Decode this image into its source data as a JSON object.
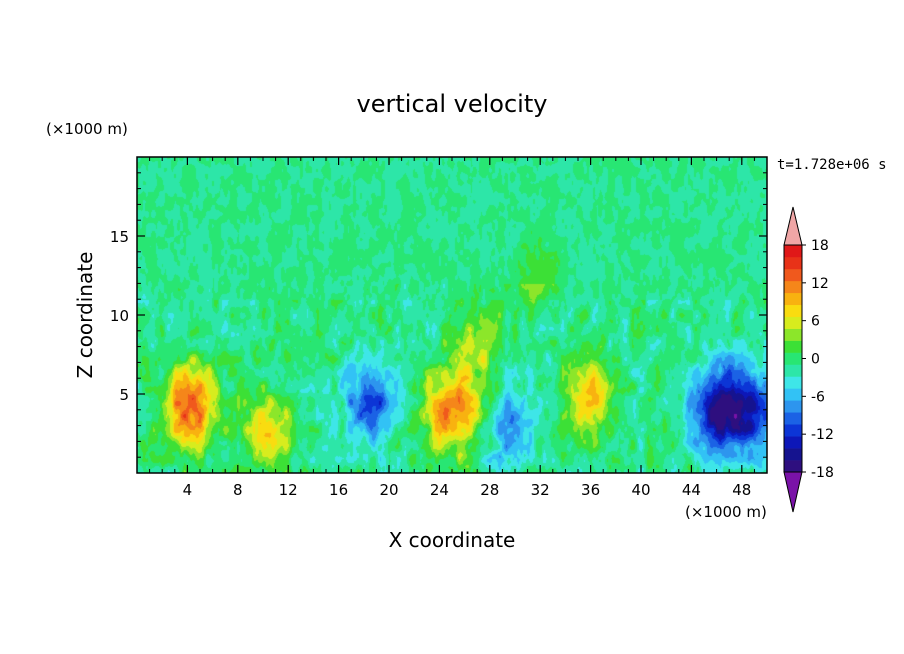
{
  "chart_data": {
    "type": "heatmap",
    "title": "vertical velocity",
    "xlabel": "X coordinate",
    "ylabel": "Z coordinate",
    "x_unit": "(×1000 m)",
    "y_unit": "(×1000 m)",
    "time_label": "t=1.728e+06 s",
    "xlim": [
      0,
      50
    ],
    "ylim": [
      0,
      20
    ],
    "x_ticks": [
      4,
      8,
      12,
      16,
      20,
      24,
      28,
      32,
      36,
      40,
      44,
      48
    ],
    "y_ticks": [
      5,
      10,
      15
    ],
    "colorbar": {
      "levels": [
        -20,
        -18,
        -16,
        -14,
        -12,
        -10,
        -8,
        -6,
        -4,
        -2,
        0,
        2,
        4,
        6,
        8,
        10,
        12,
        14,
        16,
        18,
        20
      ],
      "tick_labels": [
        18,
        12,
        6,
        0,
        -6,
        -12,
        -18
      ],
      "colors": [
        "#7a12a8",
        "#2e0f7f",
        "#15138f",
        "#0d17b8",
        "#0c35d6",
        "#1b62e5",
        "#2d95ee",
        "#32c2f5",
        "#3ee6e8",
        "#2de6a8",
        "#28e673",
        "#3ce036",
        "#8ce62a",
        "#d7ec1e",
        "#f9dc10",
        "#f8b210",
        "#f5861a",
        "#f0591d",
        "#e83218",
        "#e01818",
        "#f0a6a6"
      ]
    },
    "field_features": [
      {
        "x": 4.2,
        "z": 4.2,
        "peak": 15
      },
      {
        "x": 10.5,
        "z": 2.6,
        "peak": 9
      },
      {
        "x": 18.5,
        "z": 4.5,
        "peak": -11
      },
      {
        "x": 25.0,
        "z": 3.9,
        "peak": 13
      },
      {
        "x": 27.0,
        "z": 8.0,
        "peak": 6
      },
      {
        "x": 29.5,
        "z": 2.8,
        "peak": -7
      },
      {
        "x": 31.8,
        "z": 12.5,
        "peak": 5
      },
      {
        "x": 36.0,
        "z": 5.0,
        "peak": 10
      },
      {
        "x": 46.0,
        "z": 4.0,
        "peak": -14
      },
      {
        "x": 48.5,
        "z": 4.0,
        "peak": -12
      }
    ]
  }
}
